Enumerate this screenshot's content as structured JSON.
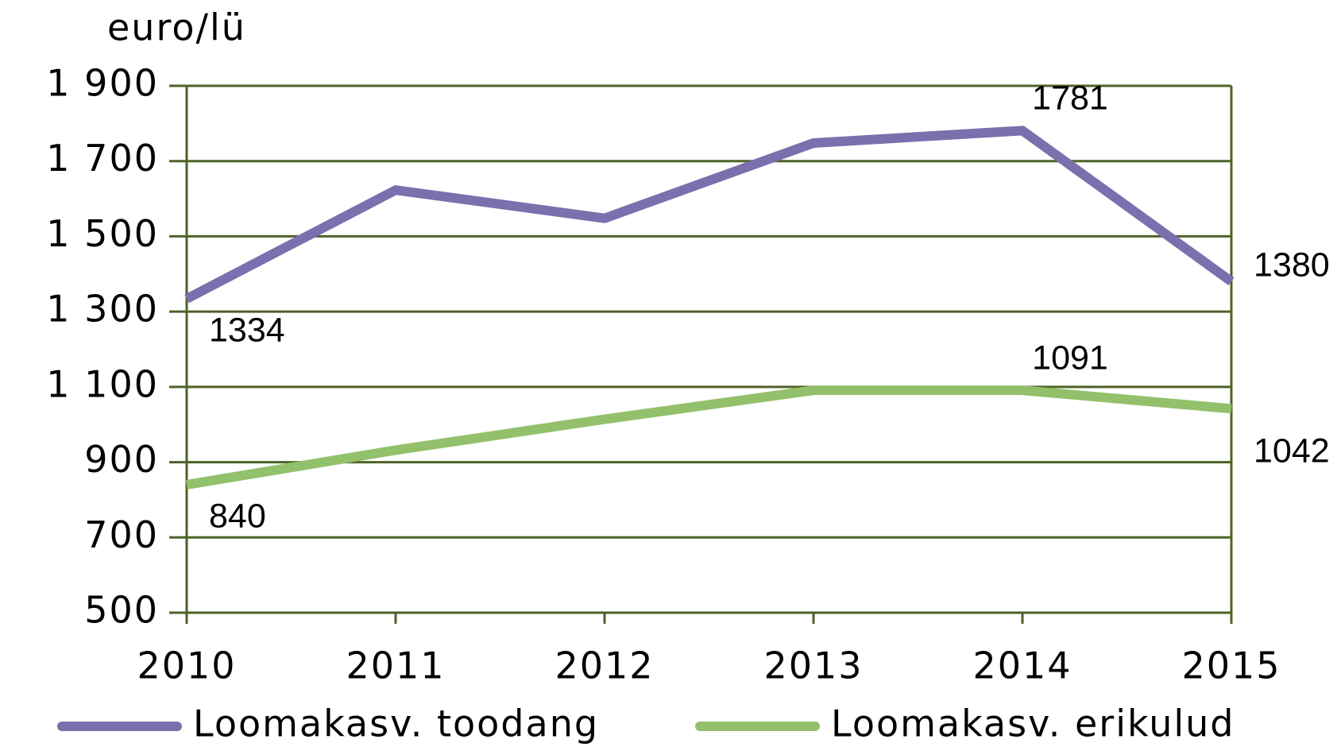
{
  "chart_data": {
    "type": "line",
    "y_axis_label": "euro/lü",
    "categories": [
      "2010",
      "2011",
      "2012",
      "2013",
      "2014",
      "2015"
    ],
    "series": [
      {
        "name": "Loomakasv. toodang",
        "color": "#7b6fae",
        "values": [
          1334,
          1623,
          1548,
          1748,
          1781,
          1380
        ],
        "data_labels": [
          0,
          4,
          5
        ]
      },
      {
        "name": "Loomakasv. erikulud",
        "color": "#93c06a",
        "values": [
          840,
          932,
          1014,
          1091,
          1091,
          1042
        ],
        "data_labels": [
          0,
          4,
          5
        ]
      }
    ],
    "ylim": [
      500,
      1900
    ],
    "yticks": [
      500,
      700,
      900,
      {
        "value": 1100,
        "label": "1 100"
      },
      {
        "value": 1300,
        "label": "1 300"
      },
      {
        "value": 1500,
        "label": "1 500"
      },
      {
        "value": 1700,
        "label": "1 700"
      },
      {
        "value": 1900,
        "label": "1 900"
      }
    ],
    "grid": true,
    "axis_color": "#4f6228",
    "legend": "bottom"
  }
}
